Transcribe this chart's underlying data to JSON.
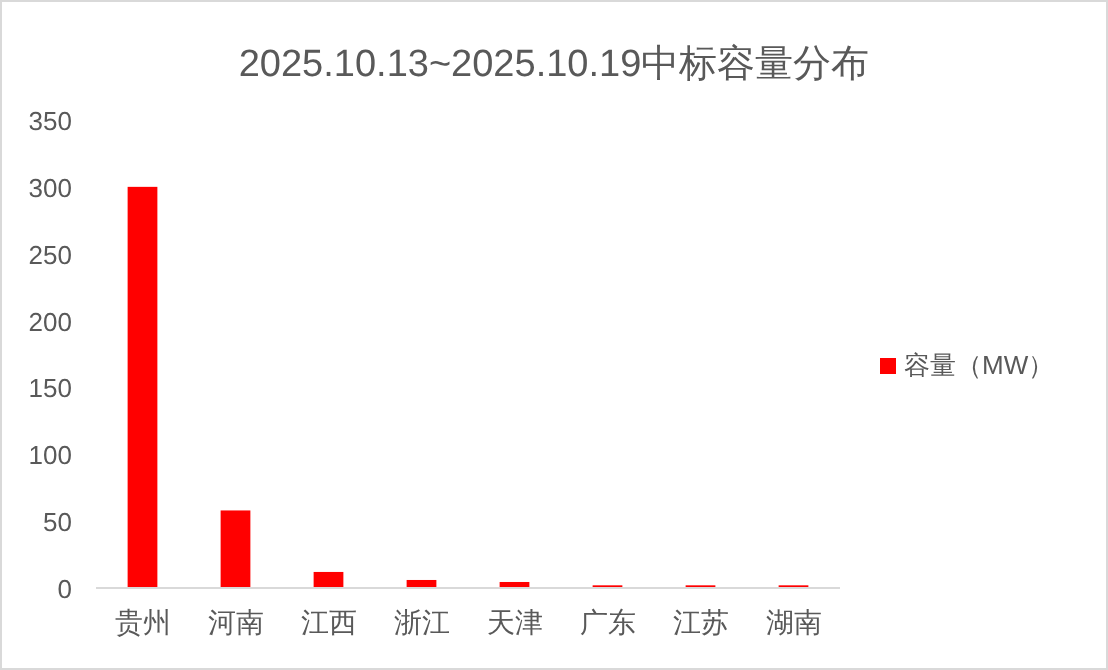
{
  "chart_data": {
    "type": "bar",
    "title": "2025.10.13~2025.10.19中标容量分布",
    "categories": [
      "贵州",
      "河南",
      "江西",
      "浙江",
      "天津",
      "广东",
      "江苏",
      "湖南"
    ],
    "series": [
      {
        "name": "容量（MW）",
        "color": "#ff0000",
        "values": [
          300,
          58,
          12,
          6,
          4.5,
          2,
          2,
          2
        ]
      }
    ],
    "ylim": [
      0,
      350
    ],
    "yticks": [
      0,
      50,
      100,
      150,
      200,
      250,
      300,
      350
    ],
    "grid": false,
    "legend": "right"
  }
}
